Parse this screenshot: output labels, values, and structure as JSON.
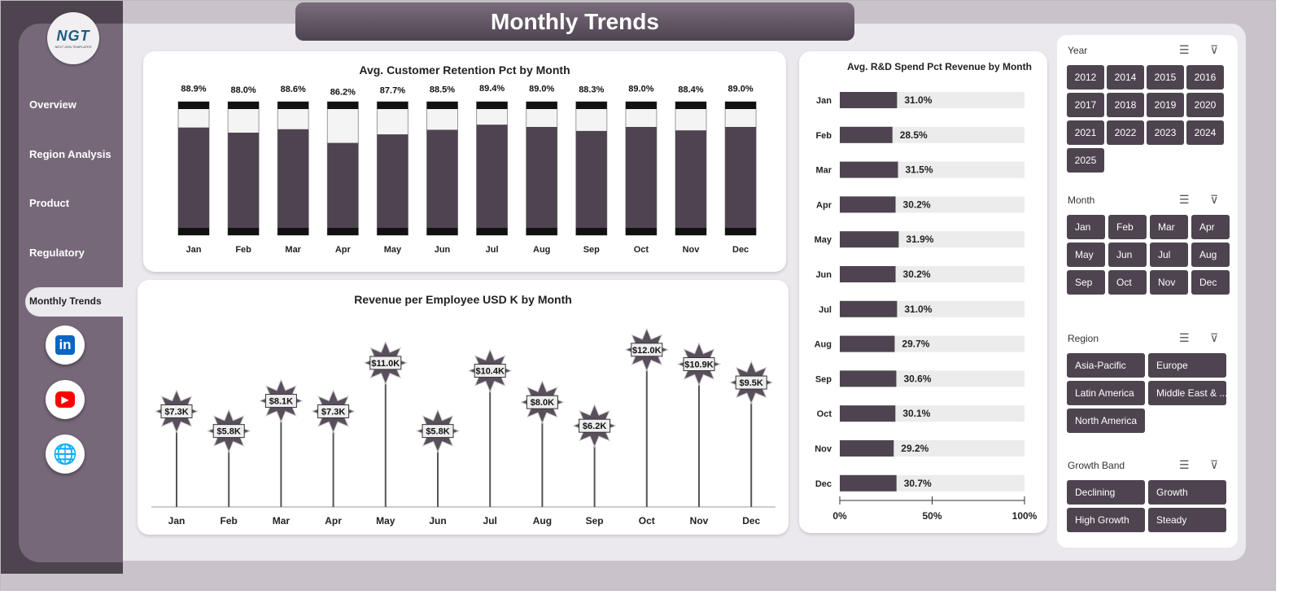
{
  "header": {
    "title": "Monthly Trends"
  },
  "logo": {
    "text": "NGT",
    "subtext": "NEXT GEN TEMPLATES"
  },
  "sidebar": {
    "items": [
      {
        "label": "Overview"
      },
      {
        "label": "Region Analysis"
      },
      {
        "label": "Product"
      },
      {
        "label": "Regulatory"
      },
      {
        "label": "Monthly Trends",
        "active": true
      }
    ],
    "social": [
      {
        "icon": "linkedin-icon",
        "label": "in"
      },
      {
        "icon": "youtube-icon",
        "label": "▶"
      },
      {
        "icon": "globe-icon",
        "label": "🌐"
      }
    ]
  },
  "colors": {
    "bar": "#4e4450",
    "accent": "#766879",
    "track": "#ececec"
  },
  "chart_data": [
    {
      "type": "bar",
      "title": "Avg. Customer Retention  Pct by Month",
      "categories": [
        "Jan",
        "Feb",
        "Mar",
        "Apr",
        "May",
        "Jun",
        "Jul",
        "Aug",
        "Sep",
        "Oct",
        "Nov",
        "Dec"
      ],
      "values": [
        88.9,
        88.0,
        88.6,
        86.2,
        87.7,
        88.5,
        89.4,
        89.0,
        88.3,
        89.0,
        88.4,
        89.0
      ],
      "labels": [
        "88.9%",
        "88.0%",
        "88.6%",
        "86.2%",
        "87.7%",
        "88.5%",
        "89.4%",
        "89.0%",
        "88.3%",
        "89.0%",
        "88.4%",
        "89.0%"
      ]
    },
    {
      "type": "line",
      "title": "Revenue  per Employee USD K by Month",
      "categories": [
        "Jan",
        "Feb",
        "Mar",
        "Apr",
        "May",
        "Jun",
        "Jul",
        "Aug",
        "Sep",
        "Oct",
        "Nov",
        "Dec"
      ],
      "values": [
        7.3,
        5.8,
        8.1,
        7.3,
        11.0,
        5.8,
        10.4,
        8.0,
        6.2,
        12.0,
        10.9,
        9.5
      ],
      "labels": [
        "$7.3K",
        "$5.8K",
        "$8.1K",
        "$7.3K",
        "$11.0K",
        "$5.8K",
        "$10.4K",
        "$8.0K",
        "$6.2K",
        "$12.0K",
        "$10.9K",
        "$9.5K"
      ]
    },
    {
      "type": "bar",
      "orientation": "horizontal",
      "title": "Avg. R&D Spend Pct Revenue by Month",
      "categories": [
        "Jan",
        "Feb",
        "Mar",
        "Apr",
        "May",
        "Jun",
        "Jul",
        "Aug",
        "Sep",
        "Oct",
        "Nov",
        "Dec"
      ],
      "values": [
        31.0,
        28.5,
        31.5,
        30.2,
        31.9,
        30.2,
        31.0,
        29.7,
        30.6,
        30.1,
        29.2,
        30.7
      ],
      "labels": [
        "31.0%",
        "28.5%",
        "31.5%",
        "30.2%",
        "31.9%",
        "30.2%",
        "31.0%",
        "29.7%",
        "30.6%",
        "30.1%",
        "29.2%",
        "30.7%"
      ],
      "xlim": [
        0,
        100
      ],
      "xticks": [
        "0%",
        "50%",
        "100%"
      ]
    }
  ],
  "slicers": [
    {
      "title": "Year",
      "items": [
        "2012",
        "2014",
        "2015",
        "2016",
        "2017",
        "2018",
        "2019",
        "2020",
        "2021",
        "2022",
        "2023",
        "2024",
        "2025"
      ]
    },
    {
      "title": "Month",
      "items": [
        "Jan",
        "Feb",
        "Mar",
        "Apr",
        "May",
        "Jun",
        "Jul",
        "Aug",
        "Sep",
        "Oct",
        "Nov",
        "Dec"
      ]
    },
    {
      "title": "Region",
      "items": [
        "Asia-Pacific",
        "Europe",
        "Latin America",
        "Middle East & ...",
        "North America"
      ]
    },
    {
      "title": "Growth Band",
      "items": [
        "Declining",
        "Growth",
        "High Growth",
        "Steady"
      ]
    }
  ]
}
